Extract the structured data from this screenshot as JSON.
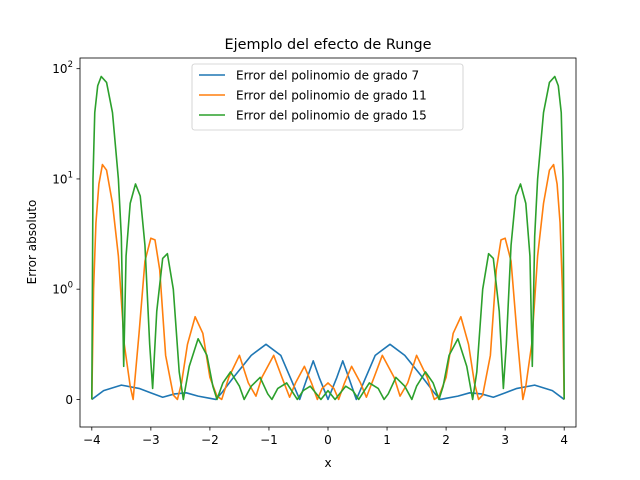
{
  "chart_data": {
    "type": "line",
    "title": "Ejemplo del efecto de Runge",
    "xlabel": "x",
    "ylabel": "Error absoluto",
    "xlim": [
      -4.2,
      4.2
    ],
    "y_scale": "symlog",
    "ylim": [
      -0.25,
      125
    ],
    "grid": false,
    "legend_position": "top-center",
    "x_ticks": [
      -4,
      -3,
      -2,
      -1,
      0,
      1,
      2,
      3,
      4
    ],
    "x_tick_labels": [
      "−4",
      "−3",
      "−2",
      "−1",
      "0",
      "1",
      "2",
      "3",
      "4"
    ],
    "y_ticks": [
      {
        "value": 0,
        "base": "0",
        "exp": ""
      },
      {
        "value": 1,
        "base": "10",
        "exp": "0"
      },
      {
        "value": 10,
        "base": "10",
        "exp": "1"
      },
      {
        "value": 100,
        "base": "10",
        "exp": "2"
      }
    ],
    "series": [
      {
        "name": "Error del polinomio de grado 7",
        "color": "#1f77b4",
        "points": [
          [
            -4.0,
            0.0
          ],
          [
            -3.8,
            0.08
          ],
          [
            -3.5,
            0.13
          ],
          [
            -3.2,
            0.1
          ],
          [
            -3.0,
            0.06
          ],
          [
            -2.8,
            0.02
          ],
          [
            -2.6,
            0.05
          ],
          [
            -2.4,
            0.06
          ],
          [
            -2.2,
            0.03
          ],
          [
            -2.0,
            0.01
          ],
          [
            -1.9,
            0.0
          ],
          [
            -1.8,
            0.06
          ],
          [
            -1.6,
            0.2
          ],
          [
            -1.3,
            0.4
          ],
          [
            -1.05,
            0.5
          ],
          [
            -0.8,
            0.4
          ],
          [
            -0.6,
            0.15
          ],
          [
            -0.48,
            0.0
          ],
          [
            -0.35,
            0.2
          ],
          [
            -0.25,
            0.35
          ],
          [
            -0.15,
            0.2
          ],
          [
            0.0,
            0.0
          ],
          [
            0.15,
            0.2
          ],
          [
            0.25,
            0.35
          ],
          [
            0.35,
            0.2
          ],
          [
            0.48,
            0.0
          ],
          [
            0.6,
            0.15
          ],
          [
            0.8,
            0.4
          ],
          [
            1.05,
            0.5
          ],
          [
            1.3,
            0.4
          ],
          [
            1.6,
            0.2
          ],
          [
            1.8,
            0.06
          ],
          [
            1.9,
            0.0
          ],
          [
            2.0,
            0.01
          ],
          [
            2.2,
            0.03
          ],
          [
            2.4,
            0.06
          ],
          [
            2.6,
            0.05
          ],
          [
            2.8,
            0.02
          ],
          [
            3.0,
            0.06
          ],
          [
            3.2,
            0.1
          ],
          [
            3.5,
            0.13
          ],
          [
            3.8,
            0.08
          ],
          [
            4.0,
            0.0
          ]
        ]
      },
      {
        "name": "Error del polinomio de grado 11",
        "color": "#ff7f0e",
        "points": [
          [
            -4.0,
            0.0
          ],
          [
            -3.97,
            1.0
          ],
          [
            -3.93,
            4.0
          ],
          [
            -3.88,
            9.0
          ],
          [
            -3.82,
            13.5
          ],
          [
            -3.75,
            12.0
          ],
          [
            -3.65,
            6.0
          ],
          [
            -3.55,
            2.0
          ],
          [
            -3.45,
            0.5
          ],
          [
            -3.35,
            0.12
          ],
          [
            -3.3,
            0.0
          ],
          [
            -3.2,
            0.6
          ],
          [
            -3.1,
            1.8
          ],
          [
            -3.0,
            2.9
          ],
          [
            -2.93,
            2.8
          ],
          [
            -2.85,
            1.5
          ],
          [
            -2.75,
            0.4
          ],
          [
            -2.62,
            0.04
          ],
          [
            -2.55,
            0.0
          ],
          [
            -2.48,
            0.15
          ],
          [
            -2.38,
            0.5
          ],
          [
            -2.25,
            0.75
          ],
          [
            -2.12,
            0.6
          ],
          [
            -2.0,
            0.2
          ],
          [
            -1.88,
            0.03
          ],
          [
            -1.8,
            0.0
          ],
          [
            -1.68,
            0.2
          ],
          [
            -1.5,
            0.4
          ],
          [
            -1.35,
            0.15
          ],
          [
            -1.22,
            0.03
          ],
          [
            -1.12,
            0.2
          ],
          [
            -0.92,
            0.4
          ],
          [
            -0.78,
            0.2
          ],
          [
            -0.65,
            0.02
          ],
          [
            -0.55,
            0.15
          ],
          [
            -0.4,
            0.3
          ],
          [
            -0.28,
            0.15
          ],
          [
            -0.18,
            0.0
          ],
          [
            -0.1,
            0.1
          ],
          [
            0.0,
            0.15
          ],
          [
            0.1,
            0.1
          ],
          [
            0.18,
            0.0
          ],
          [
            0.28,
            0.15
          ],
          [
            0.4,
            0.3
          ],
          [
            0.55,
            0.15
          ],
          [
            0.65,
            0.02
          ],
          [
            0.78,
            0.2
          ],
          [
            0.92,
            0.4
          ],
          [
            1.12,
            0.2
          ],
          [
            1.22,
            0.03
          ],
          [
            1.35,
            0.15
          ],
          [
            1.5,
            0.4
          ],
          [
            1.68,
            0.2
          ],
          [
            1.8,
            0.0
          ],
          [
            1.88,
            0.03
          ],
          [
            2.0,
            0.2
          ],
          [
            2.12,
            0.6
          ],
          [
            2.25,
            0.75
          ],
          [
            2.38,
            0.5
          ],
          [
            2.48,
            0.15
          ],
          [
            2.55,
            0.0
          ],
          [
            2.62,
            0.04
          ],
          [
            2.75,
            0.4
          ],
          [
            2.85,
            1.5
          ],
          [
            2.93,
            2.8
          ],
          [
            3.0,
            2.9
          ],
          [
            3.1,
            1.8
          ],
          [
            3.2,
            0.6
          ],
          [
            3.3,
            0.0
          ],
          [
            3.35,
            0.12
          ],
          [
            3.45,
            0.5
          ],
          [
            3.55,
            2.0
          ],
          [
            3.65,
            6.0
          ],
          [
            3.75,
            12.0
          ],
          [
            3.82,
            13.5
          ],
          [
            3.88,
            9.0
          ],
          [
            3.93,
            4.0
          ],
          [
            3.97,
            1.0
          ],
          [
            4.0,
            0.0
          ]
        ]
      },
      {
        "name": "Error del polinomio de grado 15",
        "color": "#2ca02c",
        "points": [
          [
            -4.0,
            0.0
          ],
          [
            -3.98,
            10.0
          ],
          [
            -3.95,
            40.0
          ],
          [
            -3.9,
            70.0
          ],
          [
            -3.84,
            85.0
          ],
          [
            -3.75,
            75.0
          ],
          [
            -3.65,
            40.0
          ],
          [
            -3.55,
            10.0
          ],
          [
            -3.5,
            3.0
          ],
          [
            -3.46,
            0.3
          ],
          [
            -3.42,
            2.0
          ],
          [
            -3.35,
            6.0
          ],
          [
            -3.26,
            9.0
          ],
          [
            -3.18,
            7.0
          ],
          [
            -3.1,
            2.5
          ],
          [
            -3.02,
            0.5
          ],
          [
            -2.97,
            0.1
          ],
          [
            -2.9,
            0.8
          ],
          [
            -2.8,
            1.9
          ],
          [
            -2.72,
            2.1
          ],
          [
            -2.62,
            1.0
          ],
          [
            -2.52,
            0.25
          ],
          [
            -2.45,
            0.0
          ],
          [
            -2.35,
            0.3
          ],
          [
            -2.2,
            0.55
          ],
          [
            -2.05,
            0.4
          ],
          [
            -1.95,
            0.12
          ],
          [
            -1.88,
            0.0
          ],
          [
            -1.78,
            0.15
          ],
          [
            -1.65,
            0.25
          ],
          [
            -1.5,
            0.12
          ],
          [
            -1.42,
            0.0
          ],
          [
            -1.3,
            0.12
          ],
          [
            -1.15,
            0.2
          ],
          [
            -1.02,
            0.05
          ],
          [
            -0.95,
            0.0
          ],
          [
            -0.85,
            0.1
          ],
          [
            -0.7,
            0.15
          ],
          [
            -0.58,
            0.05
          ],
          [
            -0.52,
            0.0
          ],
          [
            -0.42,
            0.08
          ],
          [
            -0.3,
            0.12
          ],
          [
            -0.18,
            0.04
          ],
          [
            -0.12,
            0.0
          ],
          [
            0.0,
            0.08
          ],
          [
            0.12,
            0.0
          ],
          [
            0.18,
            0.04
          ],
          [
            0.3,
            0.12
          ],
          [
            0.42,
            0.08
          ],
          [
            0.52,
            0.0
          ],
          [
            0.58,
            0.05
          ],
          [
            0.7,
            0.15
          ],
          [
            0.85,
            0.1
          ],
          [
            0.95,
            0.0
          ],
          [
            1.02,
            0.05
          ],
          [
            1.15,
            0.2
          ],
          [
            1.3,
            0.12
          ],
          [
            1.42,
            0.0
          ],
          [
            1.5,
            0.12
          ],
          [
            1.65,
            0.25
          ],
          [
            1.78,
            0.15
          ],
          [
            1.88,
            0.0
          ],
          [
            1.95,
            0.12
          ],
          [
            2.05,
            0.4
          ],
          [
            2.2,
            0.55
          ],
          [
            2.35,
            0.3
          ],
          [
            2.45,
            0.0
          ],
          [
            2.52,
            0.25
          ],
          [
            2.62,
            1.0
          ],
          [
            2.72,
            2.1
          ],
          [
            2.8,
            1.9
          ],
          [
            2.9,
            0.8
          ],
          [
            2.97,
            0.1
          ],
          [
            3.02,
            0.5
          ],
          [
            3.1,
            2.5
          ],
          [
            3.18,
            7.0
          ],
          [
            3.26,
            9.0
          ],
          [
            3.35,
            6.0
          ],
          [
            3.42,
            2.0
          ],
          [
            3.46,
            0.3
          ],
          [
            3.5,
            3.0
          ],
          [
            3.55,
            10.0
          ],
          [
            3.65,
            40.0
          ],
          [
            3.75,
            75.0
          ],
          [
            3.84,
            85.0
          ],
          [
            3.9,
            70.0
          ],
          [
            3.95,
            40.0
          ],
          [
            3.98,
            10.0
          ],
          [
            4.0,
            0.0
          ]
        ]
      }
    ]
  }
}
